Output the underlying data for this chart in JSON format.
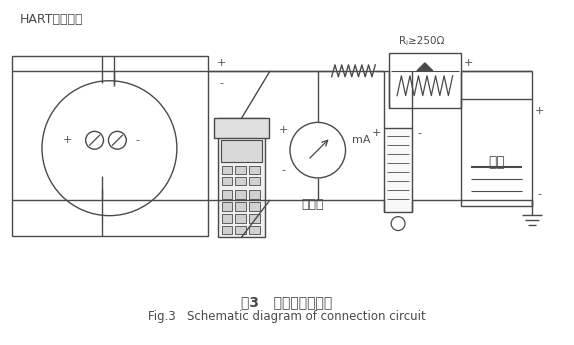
{
  "title_cn": "图3   连接回路示意图",
  "title_en": "Fig.3   Schematic diagram of connection circuit",
  "label_hart": "HART兼容设备",
  "label_ammeter": "电流表",
  "label_power": "电源",
  "label_mA": "mA",
  "label_resistance": "Rⱼ≥250Ω",
  "bg_color": "#ffffff",
  "line_color": "#4a4a4a",
  "fig_width": 5.74,
  "fig_height": 3.45,
  "dpi": 100
}
